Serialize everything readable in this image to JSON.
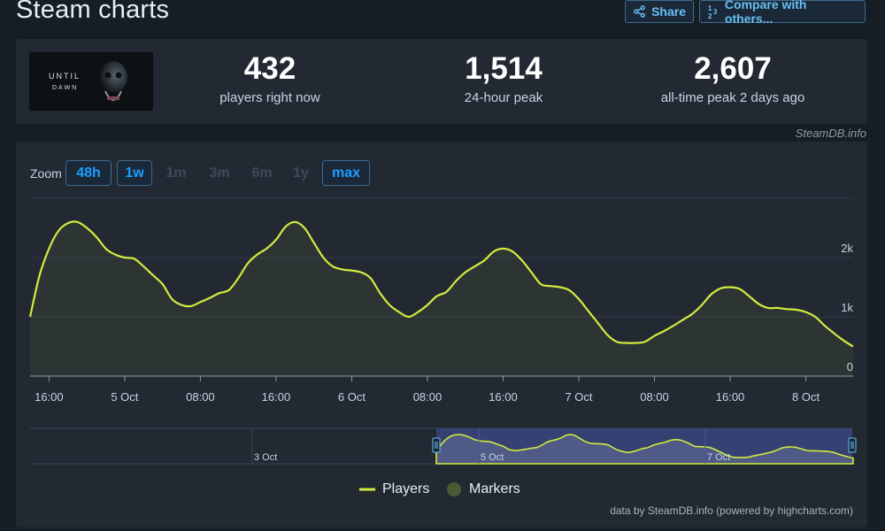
{
  "page": {
    "title": "Steam charts"
  },
  "toolbar": {
    "share_label": "Share",
    "compare_label": "Compare with others..."
  },
  "game": {
    "capsule_text_line1": "UNTIL",
    "capsule_text_line2": "DAWN"
  },
  "stats": [
    {
      "value": "432",
      "label": "players right now"
    },
    {
      "value": "1,514",
      "label": "24-hour peak"
    },
    {
      "value": "2,607",
      "label": "all-time peak 2 days ago"
    }
  ],
  "credit": "SteamDB.info",
  "zoom": {
    "label": "Zoom",
    "options": [
      {
        "label": "48h",
        "state": "active"
      },
      {
        "label": "1w",
        "state": "active"
      },
      {
        "label": "1m",
        "state": "disabled"
      },
      {
        "label": "3m",
        "state": "disabled"
      },
      {
        "label": "6m",
        "state": "disabled"
      },
      {
        "label": "1y",
        "state": "disabled"
      },
      {
        "label": "max",
        "state": "active"
      }
    ]
  },
  "legend": {
    "players_label": "Players",
    "markers_label": "Markers"
  },
  "footer_credit": "data by SteamDB.info (powered by highcharts.com)",
  "colors": {
    "line": "#d2eb3f",
    "marker": "#4b5a34",
    "navigator_selection": "#3c4a8a",
    "accent": "#1a9fff"
  },
  "chart_data": {
    "type": "area",
    "x_unit": "date-time",
    "x_tick_labels": [
      "16:00",
      "5 Oct",
      "08:00",
      "16:00",
      "6 Oct",
      "08:00",
      "16:00",
      "7 Oct",
      "08:00",
      "16:00",
      "8 Oct"
    ],
    "y_tick_labels": [
      "0",
      "1k",
      "2k"
    ],
    "ylim": [
      0,
      3000
    ],
    "series": [
      {
        "name": "Players",
        "x": [
          "2024-10-04 14:00",
          "2024-10-04 15:00",
          "2024-10-04 16:00",
          "2024-10-04 17:00",
          "2024-10-04 18:00",
          "2024-10-04 19:00",
          "2024-10-04 20:00",
          "2024-10-04 21:00",
          "2024-10-04 22:00",
          "2024-10-04 23:00",
          "2024-10-05 00:00",
          "2024-10-05 01:00",
          "2024-10-05 02:00",
          "2024-10-05 03:00",
          "2024-10-05 04:00",
          "2024-10-05 05:00",
          "2024-10-05 06:00",
          "2024-10-05 07:00",
          "2024-10-05 08:00",
          "2024-10-05 09:00",
          "2024-10-05 10:00",
          "2024-10-05 11:00",
          "2024-10-05 12:00",
          "2024-10-05 13:00",
          "2024-10-05 14:00",
          "2024-10-05 15:00",
          "2024-10-05 16:00",
          "2024-10-05 17:00",
          "2024-10-05 18:00",
          "2024-10-05 19:00",
          "2024-10-05 20:00",
          "2024-10-05 21:00",
          "2024-10-05 22:00",
          "2024-10-05 23:00",
          "2024-10-06 00:00",
          "2024-10-06 01:00",
          "2024-10-06 02:00",
          "2024-10-06 03:00",
          "2024-10-06 04:00",
          "2024-10-06 05:00",
          "2024-10-06 06:00",
          "2024-10-06 07:00",
          "2024-10-06 08:00",
          "2024-10-06 09:00",
          "2024-10-06 10:00",
          "2024-10-06 11:00",
          "2024-10-06 12:00",
          "2024-10-06 13:00",
          "2024-10-06 14:00",
          "2024-10-06 15:00",
          "2024-10-06 16:00",
          "2024-10-06 17:00",
          "2024-10-06 18:00",
          "2024-10-06 19:00",
          "2024-10-06 20:00",
          "2024-10-06 21:00",
          "2024-10-06 22:00",
          "2024-10-06 23:00",
          "2024-10-07 00:00",
          "2024-10-07 01:00",
          "2024-10-07 02:00",
          "2024-10-07 03:00",
          "2024-10-07 04:00",
          "2024-10-07 05:00",
          "2024-10-07 06:00",
          "2024-10-07 07:00",
          "2024-10-07 08:00",
          "2024-10-07 09:00",
          "2024-10-07 10:00",
          "2024-10-07 11:00",
          "2024-10-07 12:00",
          "2024-10-07 13:00",
          "2024-10-07 14:00",
          "2024-10-07 15:00",
          "2024-10-07 16:00",
          "2024-10-07 17:00",
          "2024-10-07 18:00",
          "2024-10-07 19:00",
          "2024-10-07 20:00",
          "2024-10-07 21:00",
          "2024-10-07 22:00",
          "2024-10-07 23:00",
          "2024-10-08 00:00",
          "2024-10-08 01:00",
          "2024-10-08 02:00",
          "2024-10-08 03:00",
          "2024-10-08 04:00",
          "2024-10-08 05:00"
        ],
        "values": [
          1000,
          1700,
          2150,
          2450,
          2580,
          2600,
          2500,
          2350,
          2150,
          2050,
          2000,
          1980,
          1850,
          1700,
          1550,
          1300,
          1200,
          1180,
          1250,
          1320,
          1400,
          1450,
          1650,
          1900,
          2050,
          2150,
          2300,
          2520,
          2600,
          2500,
          2250,
          2000,
          1850,
          1800,
          1780,
          1750,
          1650,
          1400,
          1200,
          1080,
          1000,
          1080,
          1200,
          1350,
          1420,
          1600,
          1750,
          1850,
          1950,
          2100,
          2150,
          2100,
          1950,
          1750,
          1550,
          1520,
          1500,
          1450,
          1300,
          1100,
          900,
          700,
          580,
          560,
          560,
          580,
          680,
          760,
          850,
          950,
          1050,
          1200,
          1380,
          1480,
          1500,
          1470,
          1350,
          1220,
          1150,
          1150,
          1130,
          1120,
          1080,
          1000,
          850,
          720,
          600,
          500
        ]
      }
    ],
    "navigator": {
      "x_labels": [
        "3 Oct",
        "5 Oct",
        "7 Oct"
      ]
    }
  }
}
